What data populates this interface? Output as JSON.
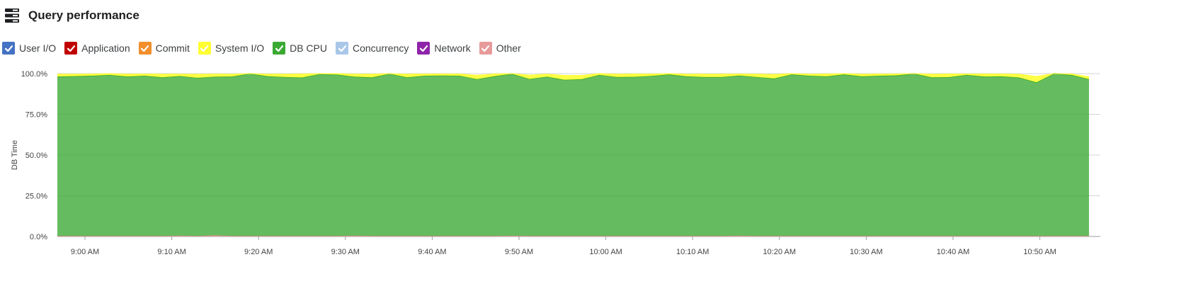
{
  "header": {
    "title": "Query performance",
    "icon": "stacked-list-icon"
  },
  "legend": [
    {
      "label": "User I/O",
      "color": "#4472c4",
      "checked": true
    },
    {
      "label": "Application",
      "color": "#c00000",
      "checked": true
    },
    {
      "label": "Commit",
      "color": "#f28e2b",
      "checked": true
    },
    {
      "label": "System I/O",
      "color": "#ffff33",
      "checked": true
    },
    {
      "label": "DB CPU",
      "color": "#3aa933",
      "checked": true
    },
    {
      "label": "Concurrency",
      "color": "#a9c7e8",
      "checked": true
    },
    {
      "label": "Network",
      "color": "#8e24aa",
      "checked": true
    },
    {
      "label": "Other",
      "color": "#e89a9a",
      "checked": true
    }
  ],
  "chart_data": {
    "type": "area",
    "stacked": true,
    "ylabel": "DB Time",
    "xlabel": "",
    "ylim": [
      0,
      100
    ],
    "yticks": [
      "0.0%",
      "25.0%",
      "50.0%",
      "75.0%",
      "100.0%"
    ],
    "xticks": [
      "9:00 AM",
      "9:10 AM",
      "9:20 AM",
      "9:30 AM",
      "9:40 AM",
      "9:50 AM",
      "10:00 AM",
      "10:10 AM",
      "10:20 AM",
      "10:30 AM",
      "10:40 AM",
      "10:50 AM"
    ],
    "x_start": "8:57 AM",
    "x_end": "10:55 AM",
    "grid": true,
    "series": [
      {
        "name": "Other",
        "color": "#e89a9a",
        "values": [
          0.3,
          0.3,
          0.3,
          0.3,
          0.3,
          0.3,
          0.3,
          0.5,
          0.3,
          0.7,
          0.3,
          0.3,
          0.3,
          0.3,
          0.3,
          0.3,
          0.3,
          0.5,
          0.3,
          0.3,
          0.3,
          0.3,
          0.3,
          0.3,
          0.3,
          0.3,
          0.5,
          0.3,
          0.3,
          0.3,
          0.3,
          0.3,
          0.3,
          0.3,
          0.3,
          0.3,
          0.3,
          0.3,
          0.3,
          0.5,
          0.3,
          0.3,
          0.3,
          0.3,
          0.3,
          0.3,
          0.3,
          0.3,
          0.3,
          0.3,
          0.3,
          0.3,
          0.3,
          0.3,
          0.3,
          0.3,
          0.3,
          0.3,
          0.3,
          0.3
        ]
      },
      {
        "name": "DB CPU",
        "color": "#3aa933",
        "values": [
          97.9,
          98.1,
          98.4,
          98.9,
          97.9,
          98.4,
          97.4,
          98.0,
          97.1,
          97.4,
          97.9,
          99.7,
          98.1,
          97.6,
          97.3,
          99.4,
          99.1,
          97.6,
          97.4,
          99.6,
          97.4,
          98.4,
          98.5,
          98.4,
          96.3,
          98.1,
          99.4,
          96.4,
          97.8,
          95.9,
          96.3,
          98.9,
          97.6,
          97.7,
          98.3,
          99.2,
          98.0,
          97.6,
          97.6,
          98.3,
          97.6,
          96.7,
          99.2,
          98.4,
          98.0,
          99.2,
          98.0,
          98.4,
          98.6,
          99.7,
          97.4,
          97.5,
          98.9,
          97.9,
          98.0,
          97.3,
          94.3,
          99.7,
          98.9,
          96.3
        ]
      },
      {
        "name": "System I/O",
        "color": "#ffff33",
        "values": [
          1.5,
          1.3,
          1.1,
          0.8,
          1.5,
          1.1,
          2.0,
          1.2,
          2.2,
          1.6,
          1.5,
          0.0,
          1.3,
          1.8,
          2.2,
          0.3,
          0.6,
          1.6,
          2.0,
          0.1,
          2.0,
          1.1,
          1.0,
          1.1,
          2.4,
          1.4,
          0.1,
          2.4,
          1.6,
          2.7,
          2.3,
          0.8,
          1.8,
          1.8,
          1.2,
          0.5,
          1.4,
          1.8,
          1.8,
          1.0,
          1.8,
          2.5,
          0.5,
          1.0,
          1.5,
          0.5,
          1.4,
          1.1,
          0.9,
          0.0,
          2.0,
          2.0,
          0.6,
          1.6,
          1.5,
          2.0,
          3.7,
          0.0,
          0.6,
          1.5
        ]
      }
    ]
  }
}
